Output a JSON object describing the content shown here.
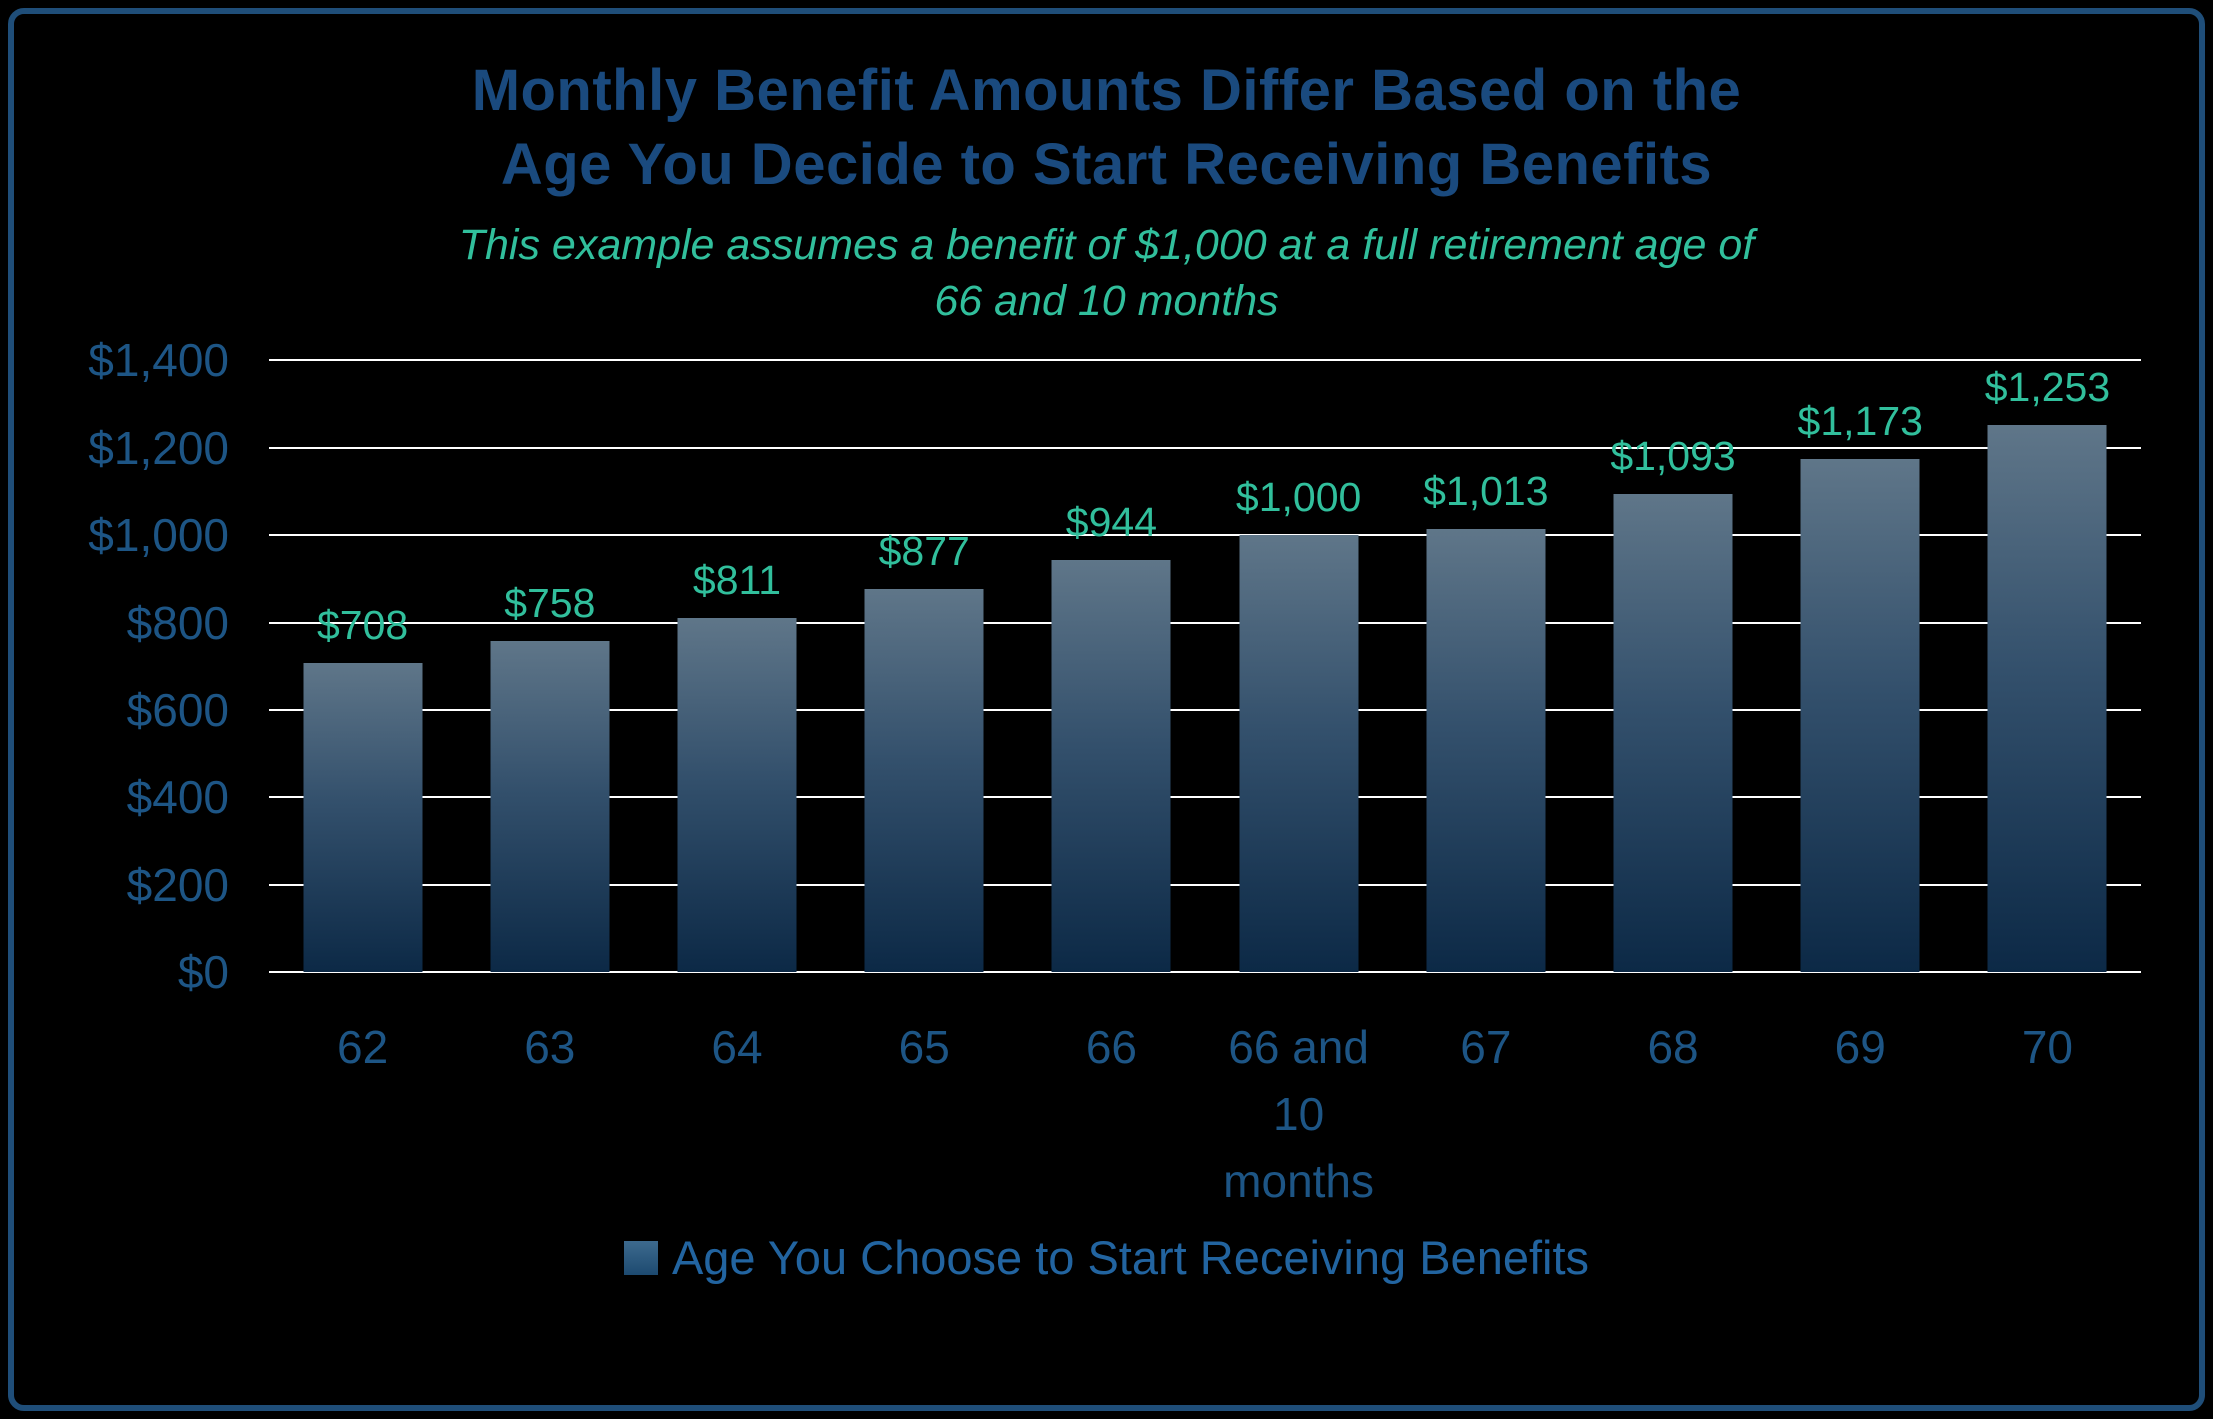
{
  "frame": {
    "background": "#000000",
    "border_color": "#1f4e79"
  },
  "title": {
    "line1": "Monthly Benefit Amounts Differ Based on the",
    "line2": "Age You Decide to Start Receiving Benefits"
  },
  "subtitle": {
    "line1": "This example assumes a benefit of $1,000 at a full retirement age of",
    "line2": "66 and 10 months"
  },
  "legend": {
    "label": "Age You Choose to Start Receiving Benefits"
  },
  "chart_data": {
    "type": "bar",
    "title": "Monthly Benefit Amounts Differ Based on the Age You Decide to Start Receiving Benefits",
    "subtitle": "This example assumes a benefit of $1,000 at a full retirement age of 66 and 10 months",
    "categories": [
      "62",
      "63",
      "64",
      "65",
      "66",
      "66 and 10 months",
      "67",
      "68",
      "69",
      "70"
    ],
    "values": [
      708,
      758,
      811,
      877,
      944,
      1000,
      1013,
      1093,
      1173,
      1253
    ],
    "value_labels": [
      "$708",
      "$758",
      "$811",
      "$877",
      "$944",
      "$1,000",
      "$1,013",
      "$1,093",
      "$1,173",
      "$1,253"
    ],
    "xlabel": "Age You Choose to Start Receiving Benefits",
    "ylabel": "",
    "ylim": [
      0,
      1400
    ],
    "grid": true,
    "legend_position": "bottom",
    "y_ticks": [
      {
        "label": "$0",
        "value": 0
      },
      {
        "label": "$200",
        "value": 200
      },
      {
        "label": "$400",
        "value": 400
      },
      {
        "label": "$600",
        "value": 600
      },
      {
        "label": "$800",
        "value": 800
      },
      {
        "label": "$1,000",
        "value": 1000
      },
      {
        "label": "$1,200",
        "value": 1200
      },
      {
        "label": "$1,400",
        "value": 1400
      }
    ],
    "colors": {
      "title": "#1a4a7e",
      "subtitle": "#31bf9c",
      "value_label": "#31bf9c",
      "axis_label": "#1d5585",
      "gridline": "#ffffff",
      "bar_top": "#5f7689",
      "bar_bottom": "#0c2946",
      "legend_text": "#2264a0",
      "background": "#000000"
    }
  }
}
